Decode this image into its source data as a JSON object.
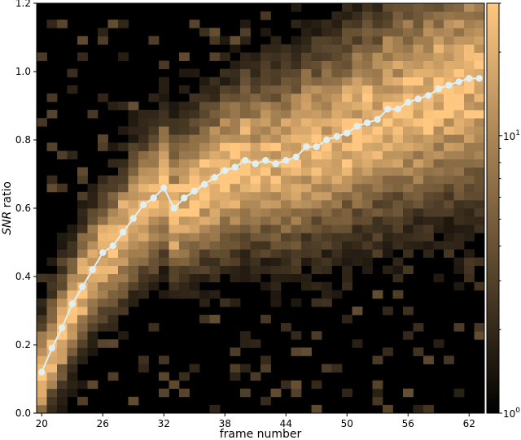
{
  "chart_data": {
    "type": "heatmap",
    "xlabel": "frame number",
    "ylabel_italic": "SNR",
    "ylabel_rest": " ratio",
    "xlim": [
      19.5,
      63.5
    ],
    "ylim": [
      0,
      1.2
    ],
    "x_ticks": [
      20,
      26,
      32,
      38,
      44,
      50,
      56,
      62
    ],
    "x_tick_labels": [
      "20",
      "26",
      "32",
      "38",
      "44",
      "50",
      "56",
      "62"
    ],
    "y_ticks": [
      0.0,
      0.2,
      0.4,
      0.6,
      0.8,
      1.0,
      1.2
    ],
    "y_tick_labels": [
      "0.0",
      "0.2",
      "0.4",
      "0.6",
      "0.8",
      "1.0",
      "1.2"
    ],
    "grid": false,
    "heatmap": {
      "x_bins": 44,
      "y_bins": 50,
      "color_scale": "log",
      "colormap": "copper",
      "count_range": [
        1,
        30
      ]
    },
    "colorbar": {
      "scale": "log",
      "ticks": [
        {
          "value": 1,
          "base": "10",
          "exponent": "0"
        },
        {
          "value": 10,
          "base": "10",
          "exponent": "1"
        }
      ]
    },
    "series": [
      {
        "color": "#dff0f5",
        "x": [
          20,
          21,
          22,
          23,
          24,
          25,
          26,
          27,
          28,
          29,
          30,
          31,
          32,
          33,
          34,
          35,
          36,
          37,
          38,
          39,
          40,
          41,
          42,
          43,
          44,
          45,
          46,
          47,
          48,
          49,
          50,
          51,
          52,
          53,
          54,
          55,
          56,
          57,
          58,
          59,
          60,
          61,
          62,
          63
        ],
        "y": [
          0.12,
          0.19,
          0.25,
          0.32,
          0.37,
          0.42,
          0.47,
          0.49,
          0.53,
          0.57,
          0.61,
          0.63,
          0.66,
          0.6,
          0.63,
          0.65,
          0.67,
          0.69,
          0.71,
          0.72,
          0.74,
          0.73,
          0.74,
          0.73,
          0.74,
          0.75,
          0.78,
          0.78,
          0.8,
          0.81,
          0.82,
          0.84,
          0.85,
          0.86,
          0.89,
          0.89,
          0.91,
          0.92,
          0.93,
          0.95,
          0.96,
          0.97,
          0.98,
          0.98
        ]
      }
    ]
  }
}
